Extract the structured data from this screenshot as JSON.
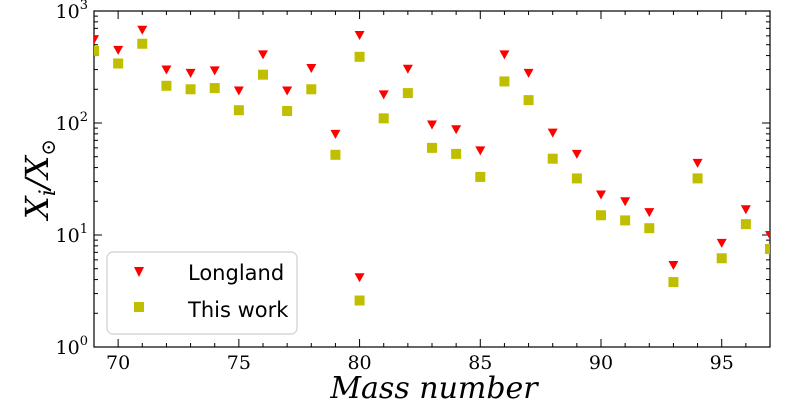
{
  "chart_data": {
    "type": "scatter",
    "title": "",
    "xlabel": "Mass number",
    "ylabel": {
      "base": "X",
      "sub_i": "i",
      "slash": "/",
      "sub_sun": "⊙"
    },
    "xlim": [
      69,
      97
    ],
    "ylim": [
      1,
      1000
    ],
    "yscale": "log",
    "x_ticks": [
      70,
      75,
      80,
      85,
      90,
      95
    ],
    "x_tick_labels": [
      "70",
      "75",
      "80",
      "85",
      "90",
      "95"
    ],
    "y_ticks": [
      {
        "value": 1,
        "base": "10",
        "exp": "0"
      },
      {
        "value": 10,
        "base": "10",
        "exp": "1"
      },
      {
        "value": 100,
        "base": "10",
        "exp": "2"
      },
      {
        "value": 1000,
        "base": "10",
        "exp": "3"
      }
    ],
    "legend_position": "bottom-left",
    "series": [
      {
        "name": "Longland",
        "marker": "triangle-down",
        "color": "#ff0000",
        "points": [
          [
            69,
            560
          ],
          [
            70,
            450
          ],
          [
            71,
            680
          ],
          [
            72,
            300
          ],
          [
            73,
            280
          ],
          [
            74,
            295
          ],
          [
            75,
            195
          ],
          [
            76,
            410
          ],
          [
            77,
            195
          ],
          [
            78,
            310
          ],
          [
            79,
            80
          ],
          [
            80,
            610
          ],
          [
            80,
            4.2
          ],
          [
            81,
            180
          ],
          [
            82,
            305
          ],
          [
            83,
            97
          ],
          [
            84,
            88
          ],
          [
            85,
            57
          ],
          [
            86,
            410
          ],
          [
            87,
            280
          ],
          [
            88,
            82
          ],
          [
            89,
            53
          ],
          [
            90,
            23
          ],
          [
            91,
            20
          ],
          [
            92,
            16
          ],
          [
            93,
            5.4
          ],
          [
            94,
            44
          ],
          [
            95,
            8.5
          ],
          [
            96,
            17
          ],
          [
            97,
            10
          ]
        ]
      },
      {
        "name": "This work",
        "marker": "square",
        "color": "#bfbf00",
        "points": [
          [
            69,
            440
          ],
          [
            70,
            340
          ],
          [
            71,
            510
          ],
          [
            72,
            215
          ],
          [
            73,
            200
          ],
          [
            74,
            205
          ],
          [
            75,
            130
          ],
          [
            76,
            270
          ],
          [
            77,
            128
          ],
          [
            78,
            200
          ],
          [
            79,
            52
          ],
          [
            80,
            390
          ],
          [
            80,
            2.6
          ],
          [
            81,
            110
          ],
          [
            82,
            185
          ],
          [
            83,
            60
          ],
          [
            84,
            53
          ],
          [
            85,
            33
          ],
          [
            86,
            235
          ],
          [
            87,
            160
          ],
          [
            88,
            48
          ],
          [
            89,
            32
          ],
          [
            90,
            15
          ],
          [
            91,
            13.5
          ],
          [
            92,
            11.5
          ],
          [
            93,
            3.8
          ],
          [
            94,
            32
          ],
          [
            95,
            6.2
          ],
          [
            96,
            12.5
          ],
          [
            97,
            7.5
          ]
        ]
      }
    ]
  }
}
